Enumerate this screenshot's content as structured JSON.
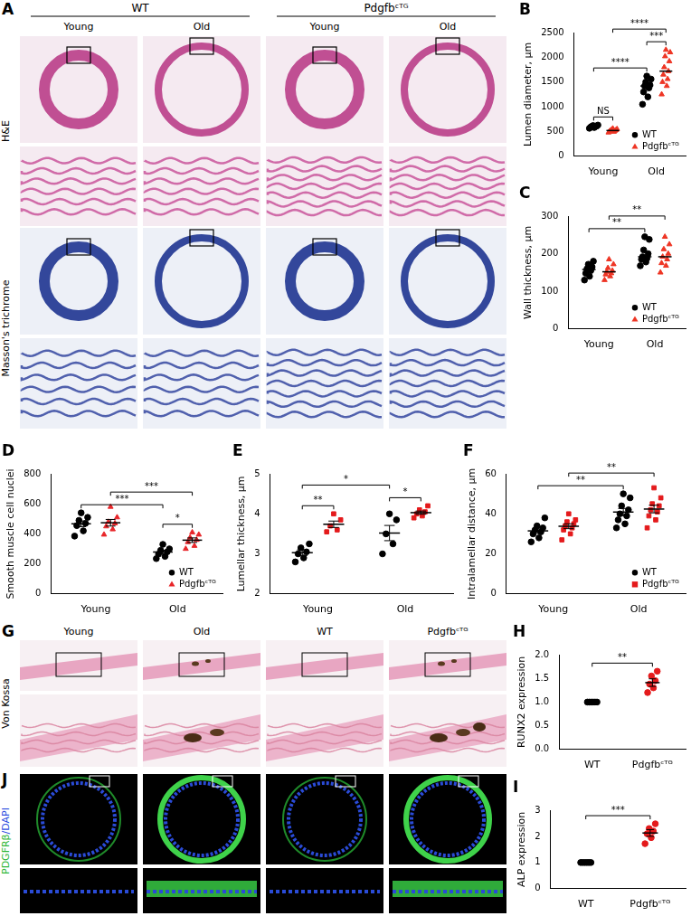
{
  "chart_data": [
    {
      "panel": "B",
      "type": "scatter",
      "y_label": "Lumen diameter, μm",
      "categories": [
        "Young",
        "Old"
      ],
      "ylim": [
        0,
        2500
      ],
      "yticks": [
        0,
        500,
        1000,
        1500,
        2000,
        2500
      ],
      "grid": false,
      "legend": "lower right",
      "series": [
        {
          "name": "WT",
          "color": "#000000",
          "marker": "circle",
          "values": [
            [
              565,
              580,
              590,
              600,
              605,
              610,
              620,
              630
            ],
            [
              1050,
              1200,
              1300,
              1380,
              1420,
              1440,
              1500,
              1560,
              1620
            ]
          ],
          "median": [
            600,
            1420
          ]
        },
        {
          "name": "Pdgfbᶜᵀᴳ",
          "color": "#ee3524",
          "marker": "triangle",
          "values": [
            [
              480,
              495,
              505,
              515,
              520,
              530,
              540,
              550,
              560
            ],
            [
              1250,
              1420,
              1500,
              1560,
              1650,
              1720,
              1800,
              1920,
              2020,
              2100,
              2150
            ]
          ],
          "median": [
            520,
            1720
          ]
        }
      ],
      "annotations": [
        {
          "text": "NS",
          "from": [
            "Young",
            "WT"
          ],
          "to": [
            "Young",
            "Pdgfbᶜᵀᴳ"
          ]
        },
        {
          "text": "***",
          "from": [
            "Old",
            "WT"
          ],
          "to": [
            "Old",
            "Pdgfbᶜᵀᴳ"
          ]
        },
        {
          "text": "****",
          "from": [
            "Young",
            "WT"
          ],
          "to": [
            "Old",
            "WT"
          ]
        },
        {
          "text": "****",
          "from": [
            "Young",
            "Pdgfbᶜᵀᴳ"
          ],
          "to": [
            "Old",
            "Pdgfbᶜᵀᴳ"
          ]
        }
      ]
    },
    {
      "panel": "C",
      "type": "scatter",
      "y_label": "Wall thickness, μm",
      "categories": [
        "Young",
        "Old"
      ],
      "ylim": [
        0,
        300
      ],
      "yticks": [
        0,
        100,
        200,
        300
      ],
      "grid": false,
      "legend": "lower right",
      "series": [
        {
          "name": "WT",
          "color": "#000000",
          "marker": "circle",
          "values": [
            [
              130,
              140,
              148,
              155,
              160,
              165,
              172,
              180
            ],
            [
              168,
              178,
              185,
              188,
              192,
              200,
              210,
              238,
              245
            ]
          ],
          "median": [
            158,
            192
          ]
        },
        {
          "name": "Pdgfbᶜᵀᴳ",
          "color": "#ee3524",
          "marker": "triangle",
          "values": [
            [
              130,
              140,
              145,
              148,
              152,
              155,
              162,
              172,
              185
            ],
            [
              150,
              168,
              175,
              185,
              192,
              200,
              212,
              225,
              245
            ]
          ],
          "median": [
            152,
            192
          ]
        }
      ],
      "annotations": [
        {
          "text": "**",
          "from": [
            "Young",
            "WT"
          ],
          "to": [
            "Old",
            "WT"
          ]
        },
        {
          "text": "**",
          "from": [
            "Young",
            "Pdgfbᶜᵀᴳ"
          ],
          "to": [
            "Old",
            "Pdgfbᶜᵀᴳ"
          ]
        }
      ]
    },
    {
      "panel": "D",
      "type": "scatter",
      "y_label": "Smooth muscle cell nuclei",
      "categories": [
        "Young",
        "Old"
      ],
      "ylim": [
        0,
        800
      ],
      "yticks": [
        0,
        200,
        400,
        600,
        800
      ],
      "grid": false,
      "legend": "lower right",
      "series": [
        {
          "name": "WT",
          "color": "#000000",
          "marker": "circle",
          "values": [
            [
              385,
              420,
              455,
              470,
              490,
              510,
              540
            ],
            [
              235,
              250,
              265,
              280,
              290,
              300,
              330
            ]
          ],
          "mean": [
            467,
            279
          ],
          "sem": [
            19,
            12
          ]
        },
        {
          "name": "Pdgfbᶜᵀᴳ",
          "color": "#e8262a",
          "marker": "triangle",
          "values": [
            [
              395,
              430,
              450,
              470,
              480,
              510,
              580
            ],
            [
              300,
              320,
              345,
              360,
              375,
              395,
              410
            ]
          ],
          "mean": [
            474,
            358
          ],
          "sem": [
            22,
            15
          ]
        }
      ],
      "annotations": [
        {
          "text": "*",
          "from": [
            "Old",
            "WT"
          ],
          "to": [
            "Old",
            "Pdgfbᶜᵀᴳ"
          ]
        },
        {
          "text": "***",
          "from": [
            "Young",
            "WT"
          ],
          "to": [
            "Old",
            "WT"
          ]
        },
        {
          "text": "***",
          "from": [
            "Young",
            "Pdgfbᶜᵀᴳ"
          ],
          "to": [
            "Old",
            "Pdgfbᶜᵀᴳ"
          ]
        }
      ]
    },
    {
      "panel": "E",
      "type": "scatter",
      "y_label": "Lumellar thickness, μm",
      "categories": [
        "Young",
        "Old"
      ],
      "ylim": [
        2,
        5
      ],
      "yticks": [
        2,
        3,
        4,
        5
      ],
      "grid": false,
      "series": [
        {
          "name": "WT",
          "color": "#000000",
          "marker": "circle",
          "values": [
            [
              2.8,
              2.9,
              3.0,
              3.05,
              3.15,
              3.25
            ],
            [
              3.0,
              3.25,
              3.5,
              3.85,
              4.0
            ]
          ],
          "mean": [
            3.03,
            3.52
          ],
          "sem": [
            0.07,
            0.19
          ]
        },
        {
          "name": "Pdgfbᶜᵀᴳ",
          "color": "#e41a1c",
          "marker": "square",
          "values": [
            [
              3.55,
              3.6,
              3.7,
              3.85,
              4.0
            ],
            [
              3.9,
              3.95,
              4.0,
              4.05,
              4.1,
              4.2
            ]
          ],
          "mean": [
            3.74,
            4.03
          ],
          "sem": [
            0.08,
            0.04
          ]
        }
      ],
      "annotations": [
        {
          "text": "**",
          "from": [
            "Young",
            "WT"
          ],
          "to": [
            "Young",
            "Pdgfbᶜᵀᴳ"
          ]
        },
        {
          "text": "*",
          "from": [
            "Old",
            "WT"
          ],
          "to": [
            "Old",
            "Pdgfbᶜᵀᴳ"
          ]
        },
        {
          "text": "*",
          "from": [
            "Young",
            "WT"
          ],
          "to": [
            "Old",
            "WT"
          ]
        }
      ]
    },
    {
      "panel": "F",
      "type": "scatter",
      "y_label": "Intralamellar distance, μm",
      "categories": [
        "Young",
        "Old"
      ],
      "ylim": [
        0,
        60
      ],
      "yticks": [
        0,
        20,
        40,
        60
      ],
      "grid": false,
      "legend": "lower right",
      "series": [
        {
          "name": "WT",
          "color": "#000000",
          "marker": "circle",
          "values": [
            [
              26,
              28,
              30,
              31,
              32,
              33,
              34,
              38
            ],
            [
              33,
              35,
              37,
              39,
              40,
              42,
              44,
              48,
              50
            ]
          ],
          "mean": [
            31.5,
            40.9
          ],
          "sem": [
            1.3,
            1.8
          ]
        },
        {
          "name": "Pdgfbᶜᵀᴳ",
          "color": "#e41a1c",
          "marker": "square",
          "values": [
            [
              27,
              30,
              32,
              33,
              34,
              35,
              36,
              37,
              40
            ],
            [
              33,
              37,
              39,
              41,
              42,
              44,
              45,
              48,
              53
            ]
          ],
          "mean": [
            33.8,
            42.4
          ],
          "sem": [
            1.2,
            1.9
          ]
        }
      ],
      "annotations": [
        {
          "text": "**",
          "from": [
            "Young",
            "WT"
          ],
          "to": [
            "Old",
            "WT"
          ]
        },
        {
          "text": "**",
          "from": [
            "Young",
            "Pdgfbᶜᵀᴳ"
          ],
          "to": [
            "Old",
            "Pdgfbᶜᵀᴳ"
          ]
        }
      ]
    },
    {
      "panel": "H",
      "type": "scatter",
      "y_label": "RUNX2 expression",
      "categories": [
        "WT",
        "Pdgfbᶜᵀᴳ"
      ],
      "ylim": [
        0,
        2
      ],
      "yticks": [
        {
          "value": 0,
          "label": "0.0"
        },
        0.5,
        {
          "value": 1,
          "label": "1.0"
        },
        1.5,
        {
          "value": 2,
          "label": "2.0"
        }
      ],
      "grid": false,
      "marker": "circle",
      "colors": [
        "#000000",
        "#e41a1c"
      ],
      "values": [
        [
          1,
          1,
          1,
          1,
          1,
          1
        ],
        [
          1.2,
          1.3,
          1.38,
          1.45,
          1.55,
          1.65
        ]
      ],
      "mean": [
        1.0,
        1.41
      ],
      "sem": [
        0,
        0.08
      ],
      "annotations": [
        {
          "text": "**",
          "from": [
            "WT"
          ],
          "to": [
            "Pdgfbᶜᵀᴳ"
          ]
        }
      ]
    },
    {
      "panel": "I",
      "type": "scatter",
      "y_label": "ALP expression",
      "categories": [
        "WT",
        "Pdgfbᶜᵀᴳ"
      ],
      "ylim": [
        0,
        3
      ],
      "yticks": [
        0,
        1,
        2,
        3
      ],
      "grid": false,
      "marker": "circle",
      "colors": [
        "#000000",
        "#e41a1c"
      ],
      "values": [
        [
          1,
          1,
          1,
          1,
          1,
          1
        ],
        [
          1.72,
          1.95,
          2.1,
          2.2,
          2.3,
          2.48
        ]
      ],
      "mean": [
        1.0,
        2.13
      ],
      "sem": [
        0,
        0.13
      ],
      "annotations": [
        {
          "text": "***",
          "from": [
            "WT"
          ],
          "to": [
            "Pdgfbᶜᵀᴳ"
          ]
        }
      ]
    }
  ],
  "figure_panels": [
    {
      "panel": "A",
      "group_labels": [
        "WT",
        "Pdgfbᶜᵀᴳ"
      ],
      "column_labels": [
        "Young",
        "Old",
        "Young",
        "Old"
      ],
      "row_labels": [
        "H&E",
        "Masson's trichrome"
      ]
    },
    {
      "panel": "G",
      "column_labels": [
        "Young",
        "Old",
        "WT",
        "Pdgfbᶜᵀᴳ"
      ],
      "row_labels": [
        "Von Kossa"
      ]
    },
    {
      "panel": "J",
      "row_labels": [
        "PDGFRβ/DAPI"
      ]
    }
  ]
}
